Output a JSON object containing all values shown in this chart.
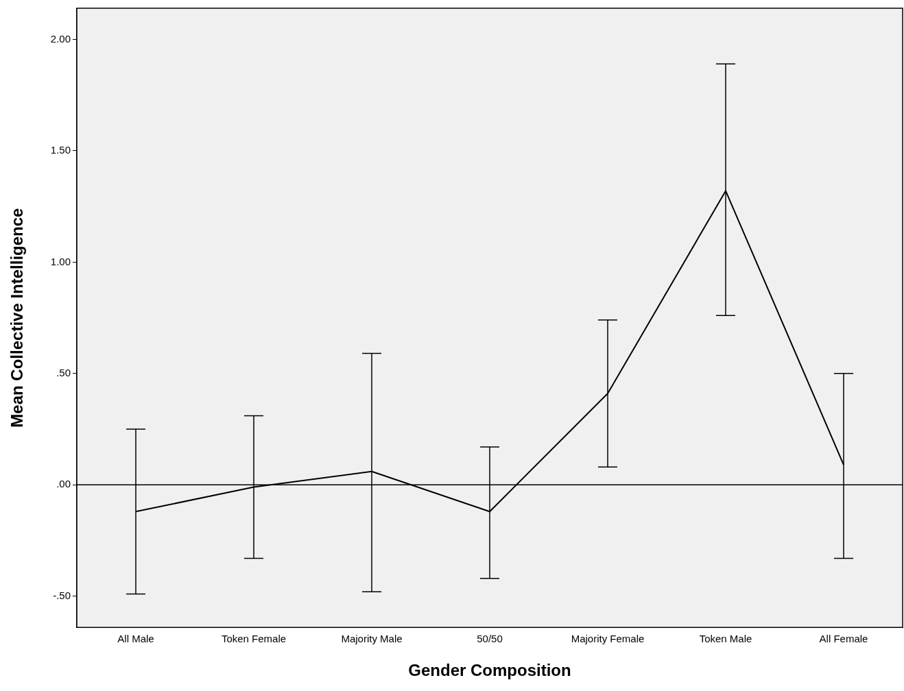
{
  "chart_data": {
    "type": "line",
    "xlabel": "Gender Composition",
    "ylabel": "Mean Collective Intelligence",
    "categories": [
      "All Male",
      "Token Female",
      "Majority Male",
      "50/50",
      "Majority Female",
      "Token Male",
      "All Female"
    ],
    "series": [
      {
        "color": "#000000",
        "values": [
          -0.12,
          -0.01,
          0.06,
          -0.12,
          0.41,
          1.32,
          0.09
        ],
        "errors": [
          [
            -0.49,
            0.25
          ],
          [
            -0.33,
            0.31
          ],
          [
            -0.48,
            0.59
          ],
          [
            -0.42,
            0.17
          ],
          [
            0.08,
            0.74
          ],
          [
            0.76,
            1.89
          ],
          [
            -0.33,
            0.5
          ]
        ]
      }
    ],
    "ylim": [
      -0.64,
      2.14
    ],
    "yticks": [
      {
        "value": -0.5,
        "label": "-.50"
      },
      {
        "value": 0,
        "label": ".00"
      },
      {
        "value": 0.5,
        "label": ".50"
      },
      {
        "value": 1,
        "label": "1.00"
      },
      {
        "value": 1.5,
        "label": "1.50"
      },
      {
        "value": 2,
        "label": "2.00"
      }
    ],
    "ref_lines": [
      {
        "axis": "y",
        "value": 0,
        "color": "#000000"
      }
    ],
    "grid": false,
    "legend": false,
    "marker": "none",
    "line_style": "solid"
  }
}
